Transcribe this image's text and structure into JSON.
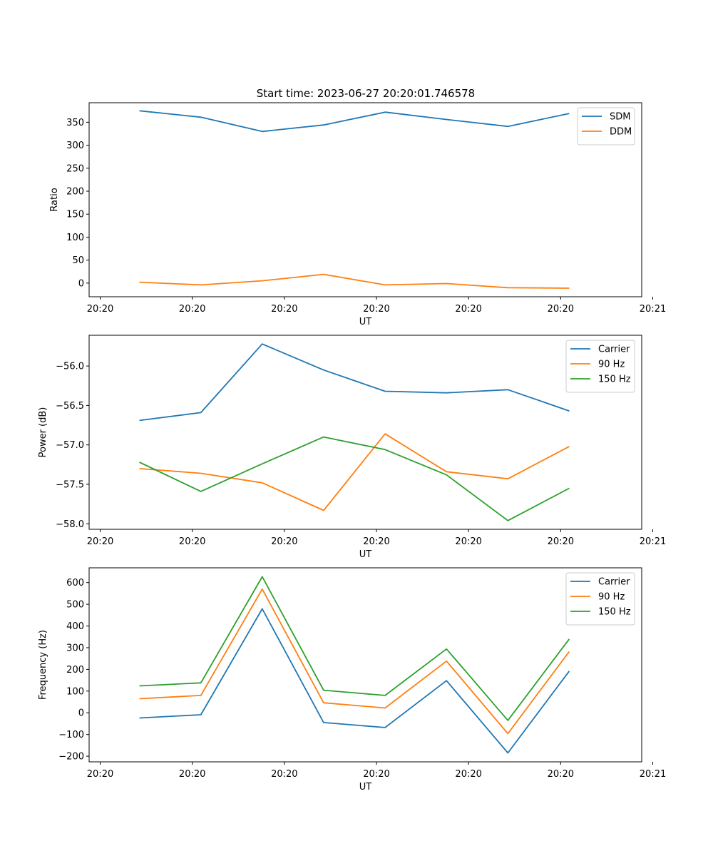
{
  "figure_title": "Start time: 2023-06-27 20:20:01.746578",
  "chart_data": [
    {
      "type": "line",
      "title": "Start time: 2023-06-27 20:20:01.746578",
      "xlabel": "UT",
      "ylabel": "Ratio",
      "x": [
        1,
        2,
        3,
        4,
        5,
        6,
        7,
        8
      ],
      "xlim": [
        0.18,
        9.18
      ],
      "x_ticks": [
        0.36,
        1.86,
        3.36,
        4.86,
        6.36,
        7.86,
        9.36
      ],
      "x_tick_labels": [
        "20:20",
        "20:20",
        "20:20",
        "20:20",
        "20:20",
        "20:20",
        "20:21"
      ],
      "ylim": [
        -29.7,
        392.5
      ],
      "y_ticks": [
        0,
        50,
        100,
        150,
        200,
        250,
        300,
        350
      ],
      "y_tick_labels": [
        "0",
        "50",
        "100",
        "150",
        "200",
        "250",
        "300",
        "350"
      ],
      "legend": "top-right",
      "grid": false,
      "series": [
        {
          "name": "SDM",
          "color": "#1f77b4",
          "values": [
            375,
            361,
            330,
            344,
            372,
            356,
            341,
            369
          ]
        },
        {
          "name": "DDM",
          "color": "#ff7f0e",
          "values": [
            2,
            -4,
            5,
            19,
            -4,
            -1,
            -10,
            -11
          ]
        }
      ]
    },
    {
      "type": "line",
      "title": "",
      "xlabel": "UT",
      "ylabel": "Power (dB)",
      "x": [
        1,
        2,
        3,
        4,
        5,
        6,
        7,
        8
      ],
      "xlim": [
        0.18,
        9.18
      ],
      "x_ticks": [
        0.36,
        1.86,
        3.36,
        4.86,
        6.36,
        7.86,
        9.36
      ],
      "x_tick_labels": [
        "20:20",
        "20:20",
        "20:20",
        "20:20",
        "20:20",
        "20:20",
        "20:21"
      ],
      "ylim": [
        -58.07,
        -55.61
      ],
      "y_ticks": [
        -58.0,
        -57.5,
        -57.0,
        -56.5,
        -56.0
      ],
      "y_tick_labels": [
        "−58.0",
        "−57.5",
        "−57.0",
        "−56.5",
        "−56.0"
      ],
      "legend": "top-right",
      "grid": false,
      "series": [
        {
          "name": "Carrier",
          "color": "#1f77b4",
          "values": [
            -56.69,
            -56.59,
            -55.72,
            -56.05,
            -56.32,
            -56.34,
            -56.3,
            -56.57
          ]
        },
        {
          "name": "90 Hz",
          "color": "#ff7f0e",
          "values": [
            -57.3,
            -57.36,
            -57.48,
            -57.83,
            -56.86,
            -57.34,
            -57.43,
            -57.02
          ]
        },
        {
          "name": "150 Hz",
          "color": "#2ca02c",
          "values": [
            -57.22,
            -57.59,
            -57.24,
            -56.9,
            -57.06,
            -57.38,
            -57.96,
            -57.55
          ]
        }
      ]
    },
    {
      "type": "line",
      "title": "",
      "xlabel": "UT",
      "ylabel": "Frequency (Hz)",
      "x": [
        1,
        2,
        3,
        4,
        5,
        6,
        7,
        8
      ],
      "xlim": [
        0.18,
        9.18
      ],
      "x_ticks": [
        0.36,
        1.86,
        3.36,
        4.86,
        6.36,
        7.86,
        9.36
      ],
      "x_tick_labels": [
        "20:20",
        "20:20",
        "20:20",
        "20:20",
        "20:20",
        "20:20",
        "20:21"
      ],
      "ylim": [
        -226,
        668
      ],
      "y_ticks": [
        -200,
        -100,
        0,
        100,
        200,
        300,
        400,
        500,
        600
      ],
      "y_tick_labels": [
        "−200",
        "−100",
        "0",
        "100",
        "200",
        "300",
        "400",
        "500",
        "600"
      ],
      "legend": "top-right",
      "grid": false,
      "series": [
        {
          "name": "Carrier",
          "color": "#1f77b4",
          "values": [
            -24,
            -9,
            479,
            -45,
            -68,
            148,
            -185,
            192
          ]
        },
        {
          "name": "90 Hz",
          "color": "#ff7f0e",
          "values": [
            65,
            80,
            570,
            46,
            22,
            238,
            -96,
            282
          ]
        },
        {
          "name": "150 Hz",
          "color": "#2ca02c",
          "values": [
            124,
            138,
            627,
            104,
            80,
            294,
            -35,
            340
          ]
        }
      ]
    }
  ]
}
